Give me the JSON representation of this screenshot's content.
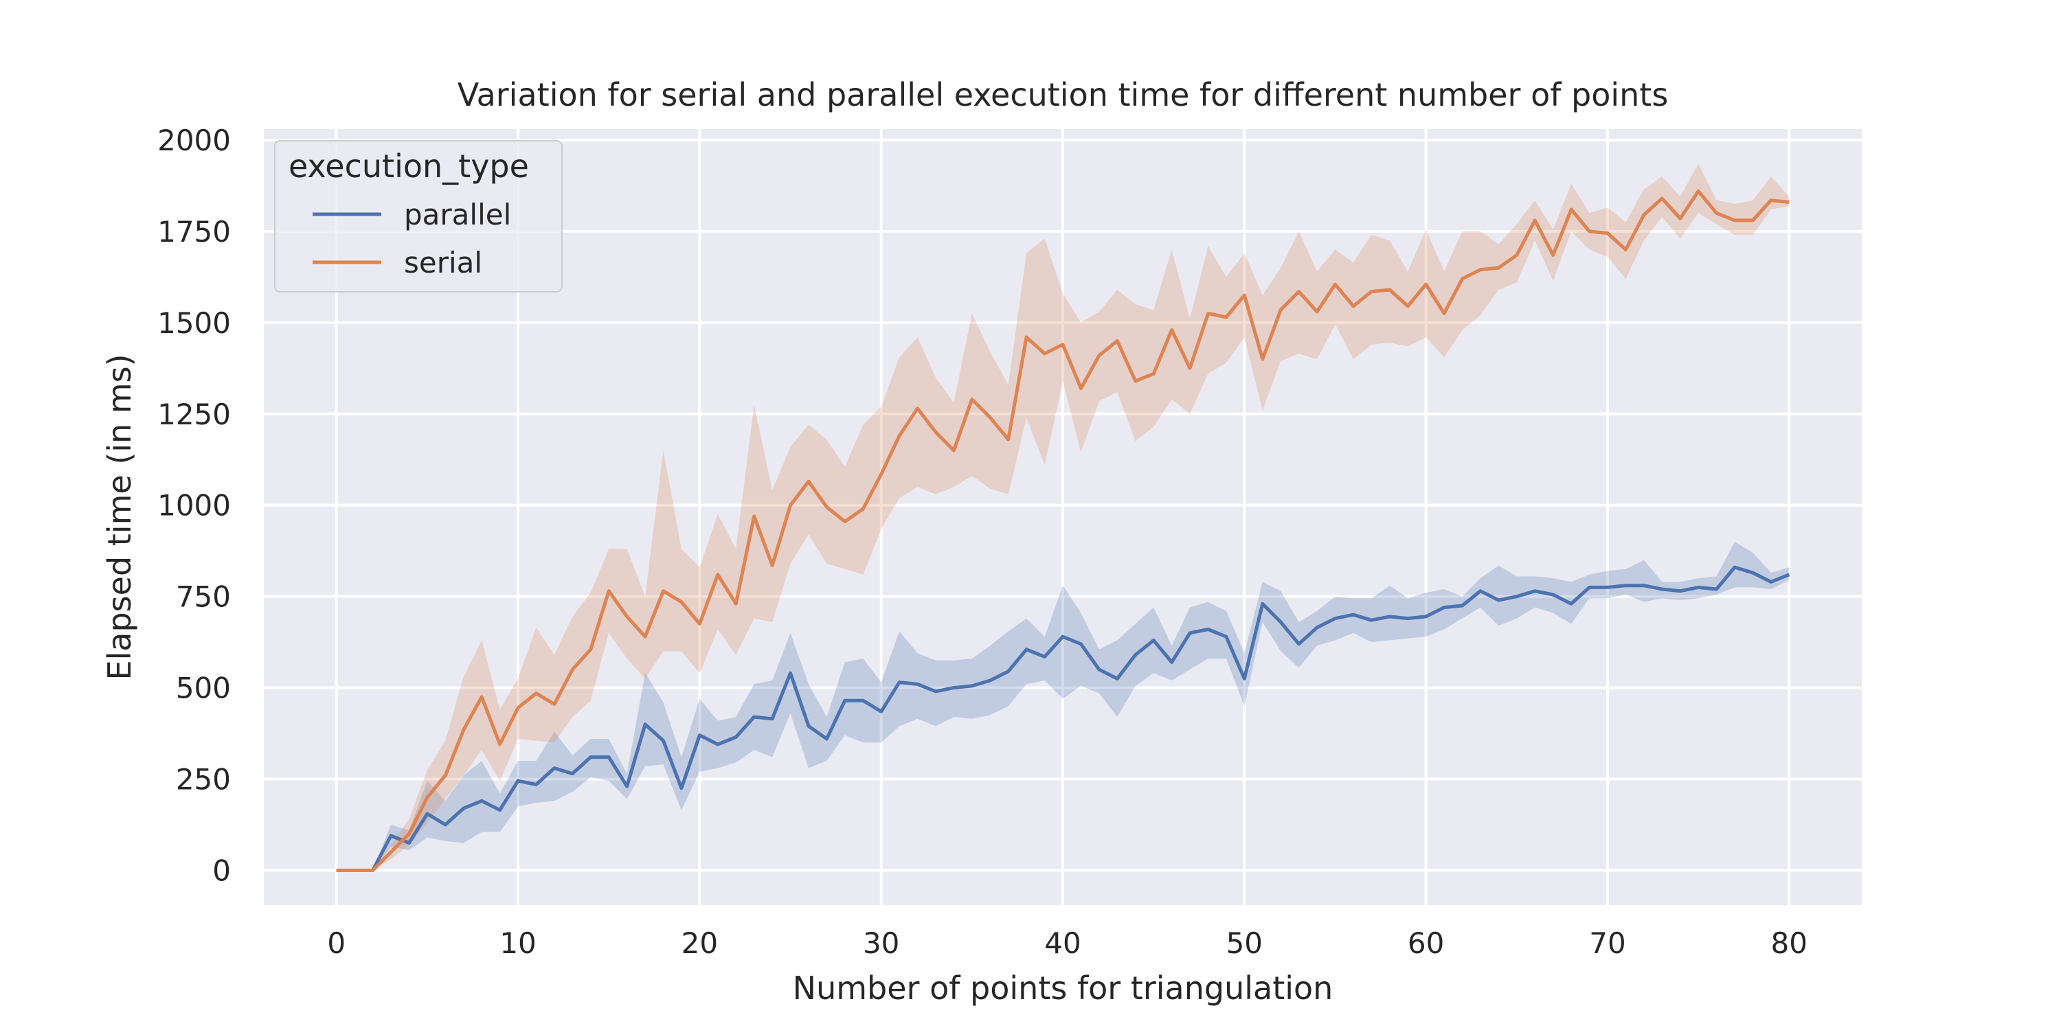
{
  "chart_data": {
    "type": "line",
    "title": "Variation for serial and parallel execution time for different number of points",
    "xlabel": "Number of points for triangulation",
    "ylabel": "Elapsed time (in ms)",
    "xlim": [
      -4,
      84
    ],
    "ylim": [
      -95,
      2030
    ],
    "xticks": [
      0,
      10,
      20,
      30,
      40,
      50,
      60,
      70,
      80
    ],
    "yticks": [
      0,
      250,
      500,
      750,
      1000,
      1250,
      1500,
      1750,
      2000
    ],
    "grid": true,
    "legend": {
      "title": "execution_type",
      "position": "top-left"
    },
    "x": [
      0,
      1,
      2,
      3,
      4,
      5,
      6,
      7,
      8,
      9,
      10,
      11,
      12,
      13,
      14,
      15,
      16,
      17,
      18,
      19,
      20,
      21,
      22,
      23,
      24,
      25,
      26,
      27,
      28,
      29,
      30,
      31,
      32,
      33,
      34,
      35,
      36,
      37,
      38,
      39,
      40,
      41,
      42,
      43,
      44,
      45,
      46,
      47,
      48,
      49,
      50,
      51,
      52,
      53,
      54,
      55,
      56,
      57,
      58,
      59,
      60,
      61,
      62,
      63,
      64,
      65,
      66,
      67,
      68,
      69,
      70,
      71,
      72,
      73,
      74,
      75,
      76,
      77,
      78,
      79,
      80
    ],
    "series": [
      {
        "name": "parallel",
        "color": "#4c72b0",
        "values": [
          0,
          0,
          0,
          95,
          75,
          155,
          125,
          170,
          190,
          165,
          245,
          235,
          280,
          265,
          310,
          310,
          230,
          400,
          355,
          225,
          370,
          345,
          365,
          420,
          415,
          540,
          395,
          360,
          465,
          465,
          435,
          515,
          510,
          490,
          500,
          505,
          520,
          545,
          605,
          585,
          640,
          620,
          550,
          525,
          590,
          630,
          570,
          650,
          660,
          640,
          525,
          730,
          680,
          620,
          665,
          690,
          700,
          685,
          695,
          690,
          695,
          720,
          725,
          765,
          740,
          750,
          765,
          755,
          730,
          775,
          775,
          780,
          780,
          770,
          765,
          775,
          770,
          830,
          815,
          790,
          810
        ],
        "ci_low": [
          0,
          0,
          0,
          65,
          55,
          90,
          80,
          75,
          105,
          105,
          175,
          185,
          190,
          215,
          255,
          245,
          195,
          285,
          290,
          165,
          270,
          280,
          295,
          330,
          310,
          430,
          280,
          300,
          370,
          350,
          350,
          395,
          415,
          395,
          420,
          415,
          425,
          450,
          510,
          520,
          470,
          505,
          485,
          420,
          505,
          540,
          520,
          550,
          580,
          580,
          450,
          680,
          600,
          555,
          615,
          630,
          650,
          625,
          630,
          635,
          640,
          660,
          690,
          720,
          670,
          690,
          720,
          705,
          675,
          745,
          745,
          755,
          735,
          745,
          740,
          745,
          755,
          775,
          775,
          770,
          795
        ],
        "ci_high": [
          0,
          0,
          0,
          125,
          110,
          245,
          190,
          260,
          300,
          210,
          300,
          300,
          380,
          315,
          360,
          360,
          265,
          540,
          460,
          310,
          470,
          410,
          420,
          510,
          520,
          650,
          510,
          420,
          570,
          580,
          515,
          655,
          595,
          575,
          575,
          580,
          615,
          655,
          690,
          640,
          780,
          705,
          605,
          630,
          675,
          720,
          615,
          720,
          735,
          710,
          595,
          790,
          765,
          680,
          710,
          750,
          745,
          745,
          780,
          745,
          760,
          770,
          750,
          800,
          835,
          805,
          805,
          800,
          790,
          810,
          820,
          825,
          850,
          790,
          790,
          800,
          805,
          900,
          870,
          815,
          830
        ]
      },
      {
        "name": "serial",
        "color": "#dd8452",
        "values": [
          0,
          0,
          0,
          50,
          100,
          200,
          260,
          385,
          475,
          345,
          445,
          485,
          455,
          550,
          605,
          765,
          695,
          640,
          765,
          735,
          675,
          810,
          730,
          970,
          835,
          1000,
          1065,
          995,
          955,
          990,
          1085,
          1190,
          1265,
          1200,
          1150,
          1290,
          1240,
          1180,
          1460,
          1415,
          1440,
          1320,
          1410,
          1450,
          1340,
          1360,
          1480,
          1375,
          1525,
          1515,
          1575,
          1400,
          1535,
          1585,
          1530,
          1605,
          1545,
          1585,
          1590,
          1545,
          1605,
          1525,
          1620,
          1645,
          1650,
          1685,
          1780,
          1685,
          1810,
          1750,
          1745,
          1700,
          1795,
          1840,
          1785,
          1860,
          1800,
          1780,
          1780,
          1835,
          1830
        ],
        "ci_low": [
          0,
          0,
          0,
          30,
          70,
          130,
          195,
          260,
          330,
          245,
          360,
          355,
          350,
          420,
          465,
          650,
          580,
          525,
          600,
          600,
          540,
          660,
          590,
          690,
          680,
          840,
          920,
          840,
          825,
          810,
          935,
          1020,
          1050,
          1030,
          1050,
          1080,
          1045,
          1030,
          1240,
          1110,
          1340,
          1145,
          1285,
          1310,
          1175,
          1215,
          1290,
          1250,
          1360,
          1390,
          1460,
          1260,
          1395,
          1415,
          1400,
          1495,
          1400,
          1440,
          1445,
          1435,
          1460,
          1405,
          1480,
          1520,
          1590,
          1610,
          1725,
          1615,
          1750,
          1700,
          1680,
          1620,
          1725,
          1790,
          1730,
          1800,
          1770,
          1740,
          1740,
          1810,
          1820
        ],
        "ci_high": [
          0,
          0,
          0,
          70,
          140,
          275,
          355,
          530,
          630,
          440,
          525,
          665,
          590,
          695,
          760,
          880,
          880,
          750,
          1150,
          880,
          830,
          975,
          880,
          1275,
          1040,
          1160,
          1220,
          1180,
          1105,
          1220,
          1270,
          1405,
          1460,
          1350,
          1280,
          1525,
          1420,
          1330,
          1690,
          1730,
          1580,
          1500,
          1530,
          1590,
          1550,
          1535,
          1700,
          1510,
          1710,
          1625,
          1690,
          1575,
          1650,
          1750,
          1640,
          1700,
          1665,
          1740,
          1725,
          1640,
          1755,
          1640,
          1750,
          1750,
          1715,
          1770,
          1835,
          1755,
          1880,
          1800,
          1815,
          1775,
          1865,
          1900,
          1845,
          1935,
          1835,
          1825,
          1835,
          1900,
          1845
        ]
      }
    ]
  }
}
